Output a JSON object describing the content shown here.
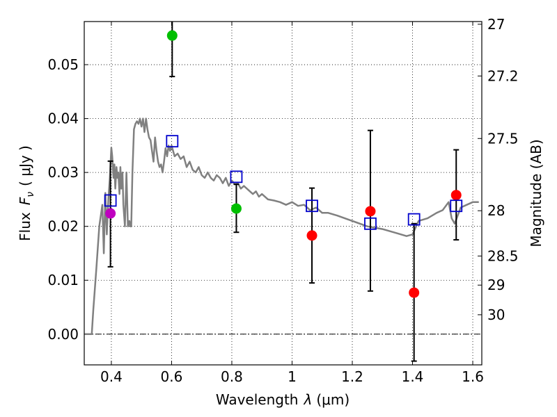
{
  "chart_data": {
    "type": "scatter",
    "xlabel_text": "Wavelength",
    "xlabel_symbol": "λ",
    "xlabel_unit": "(μm)",
    "ylabel_text": "Flux",
    "ylabel_symbol": "F",
    "ylabel_subscript": "ν",
    "ylabel_unit": "( μJy )",
    "y2label": "Magnitude (AB)",
    "xlim": [
      0.31,
      1.63
    ],
    "ylim": [
      -0.0057,
      0.058
    ],
    "grid": true,
    "x_ticks": [
      0.4,
      0.6,
      0.8,
      1.0,
      1.2,
      1.4,
      1.6
    ],
    "x_tick_labels": [
      "0.4",
      "0.6",
      "0.8",
      "1",
      "1.2",
      "1.4",
      "1.6"
    ],
    "y_ticks": [
      0.0,
      0.01,
      0.02,
      0.03,
      0.04,
      0.05
    ],
    "y_tick_labels": [
      "0.00",
      "0.01",
      "0.02",
      "0.03",
      "0.04",
      "0.05"
    ],
    "y2_ticks": [
      {
        "flux": 0.0575,
        "label": "27"
      },
      {
        "flux": 0.0479,
        "label": "27.2"
      },
      {
        "flux": 0.0363,
        "label": "27.5"
      },
      {
        "flux": 0.0229,
        "label": "28"
      },
      {
        "flux": 0.0145,
        "label": "28.5"
      },
      {
        "flux": 0.0091,
        "label": "29"
      },
      {
        "flux": 0.0036,
        "label": "30"
      }
    ],
    "sed_model": {
      "name": "model spectrum",
      "color": "#808080",
      "x": [
        0.31,
        0.33,
        0.335,
        0.34,
        0.35,
        0.36,
        0.37,
        0.375,
        0.38,
        0.385,
        0.39,
        0.395,
        0.4,
        0.403,
        0.407,
        0.41,
        0.413,
        0.417,
        0.42,
        0.423,
        0.427,
        0.43,
        0.433,
        0.437,
        0.44,
        0.445,
        0.45,
        0.455,
        0.46,
        0.463,
        0.466,
        0.47,
        0.475,
        0.48,
        0.485,
        0.49,
        0.495,
        0.5,
        0.505,
        0.51,
        0.515,
        0.52,
        0.525,
        0.53,
        0.535,
        0.54,
        0.545,
        0.55,
        0.555,
        0.56,
        0.565,
        0.57,
        0.575,
        0.58,
        0.585,
        0.59,
        0.595,
        0.6,
        0.61,
        0.62,
        0.63,
        0.64,
        0.65,
        0.66,
        0.67,
        0.68,
        0.69,
        0.7,
        0.71,
        0.72,
        0.73,
        0.74,
        0.75,
        0.76,
        0.77,
        0.78,
        0.79,
        0.8,
        0.81,
        0.82,
        0.83,
        0.84,
        0.85,
        0.86,
        0.87,
        0.88,
        0.89,
        0.9,
        0.92,
        0.94,
        0.96,
        0.98,
        1.0,
        1.02,
        1.04,
        1.06,
        1.08,
        1.1,
        1.12,
        1.15,
        1.2,
        1.25,
        1.3,
        1.35,
        1.38,
        1.4,
        1.42,
        1.45,
        1.48,
        1.5,
        1.52,
        1.53,
        1.54,
        1.56,
        1.58,
        1.6,
        1.62
      ],
      "y": [
        0.0,
        0.0,
        0.0,
        0.0045,
        0.012,
        0.02,
        0.024,
        0.015,
        0.0262,
        0.0185,
        0.025,
        0.029,
        0.0346,
        0.033,
        0.029,
        0.0315,
        0.027,
        0.031,
        0.029,
        0.03,
        0.026,
        0.031,
        0.027,
        0.03,
        0.024,
        0.02,
        0.03,
        0.02,
        0.021,
        0.02,
        0.02,
        0.03,
        0.038,
        0.039,
        0.0395,
        0.039,
        0.04,
        0.0385,
        0.04,
        0.0375,
        0.04,
        0.038,
        0.0365,
        0.036,
        0.034,
        0.032,
        0.0365,
        0.034,
        0.032,
        0.031,
        0.0315,
        0.03,
        0.032,
        0.0345,
        0.033,
        0.035,
        0.034,
        0.035,
        0.033,
        0.0335,
        0.0325,
        0.033,
        0.031,
        0.032,
        0.0305,
        0.03,
        0.031,
        0.0295,
        0.029,
        0.03,
        0.029,
        0.0285,
        0.0295,
        0.029,
        0.028,
        0.029,
        0.0275,
        0.0285,
        0.0278,
        0.028,
        0.027,
        0.0275,
        0.027,
        0.0265,
        0.026,
        0.0265,
        0.0255,
        0.026,
        0.025,
        0.0248,
        0.0245,
        0.024,
        0.0245,
        0.0238,
        0.024,
        0.023,
        0.0235,
        0.0225,
        0.0225,
        0.022,
        0.021,
        0.02,
        0.0195,
        0.0187,
        0.0182,
        0.0185,
        0.021,
        0.0215,
        0.0225,
        0.023,
        0.0245,
        0.0215,
        0.0205,
        0.0235,
        0.024,
        0.0245,
        0.0245
      ]
    },
    "model_photometry": {
      "name": "model photometry",
      "color": "#0000cc",
      "points": [
        {
          "x": 0.397,
          "y": 0.0248
        },
        {
          "x": 0.602,
          "y": 0.0358
        },
        {
          "x": 0.815,
          "y": 0.0292
        },
        {
          "x": 1.066,
          "y": 0.0238
        },
        {
          "x": 1.26,
          "y": 0.0205
        },
        {
          "x": 1.405,
          "y": 0.0213
        },
        {
          "x": 1.545,
          "y": 0.0238
        }
      ]
    },
    "observations": {
      "name": "observed photometry",
      "points": [
        {
          "x": 0.397,
          "y": 0.0224,
          "err_low": 0.0125,
          "err_high": 0.0321,
          "color": "#bf00bf"
        },
        {
          "x": 0.602,
          "y": 0.0554,
          "err_low": 0.0478,
          "err_high": 0.06,
          "color": "#00bf00"
        },
        {
          "x": 0.815,
          "y": 0.0233,
          "err_low": 0.0189,
          "err_high": 0.0278,
          "color": "#00bf00"
        },
        {
          "x": 1.066,
          "y": 0.0183,
          "err_low": 0.0095,
          "err_high": 0.0271,
          "color": "#ff0000"
        },
        {
          "x": 1.26,
          "y": 0.0228,
          "err_low": 0.008,
          "err_high": 0.0378,
          "color": "#ff0000"
        },
        {
          "x": 1.405,
          "y": 0.0077,
          "err_low": -0.005,
          "err_high": 0.0205,
          "color": "#ff0000"
        },
        {
          "x": 1.545,
          "y": 0.0258,
          "err_low": 0.0175,
          "err_high": 0.0342,
          "color": "#ff0000"
        }
      ]
    }
  }
}
